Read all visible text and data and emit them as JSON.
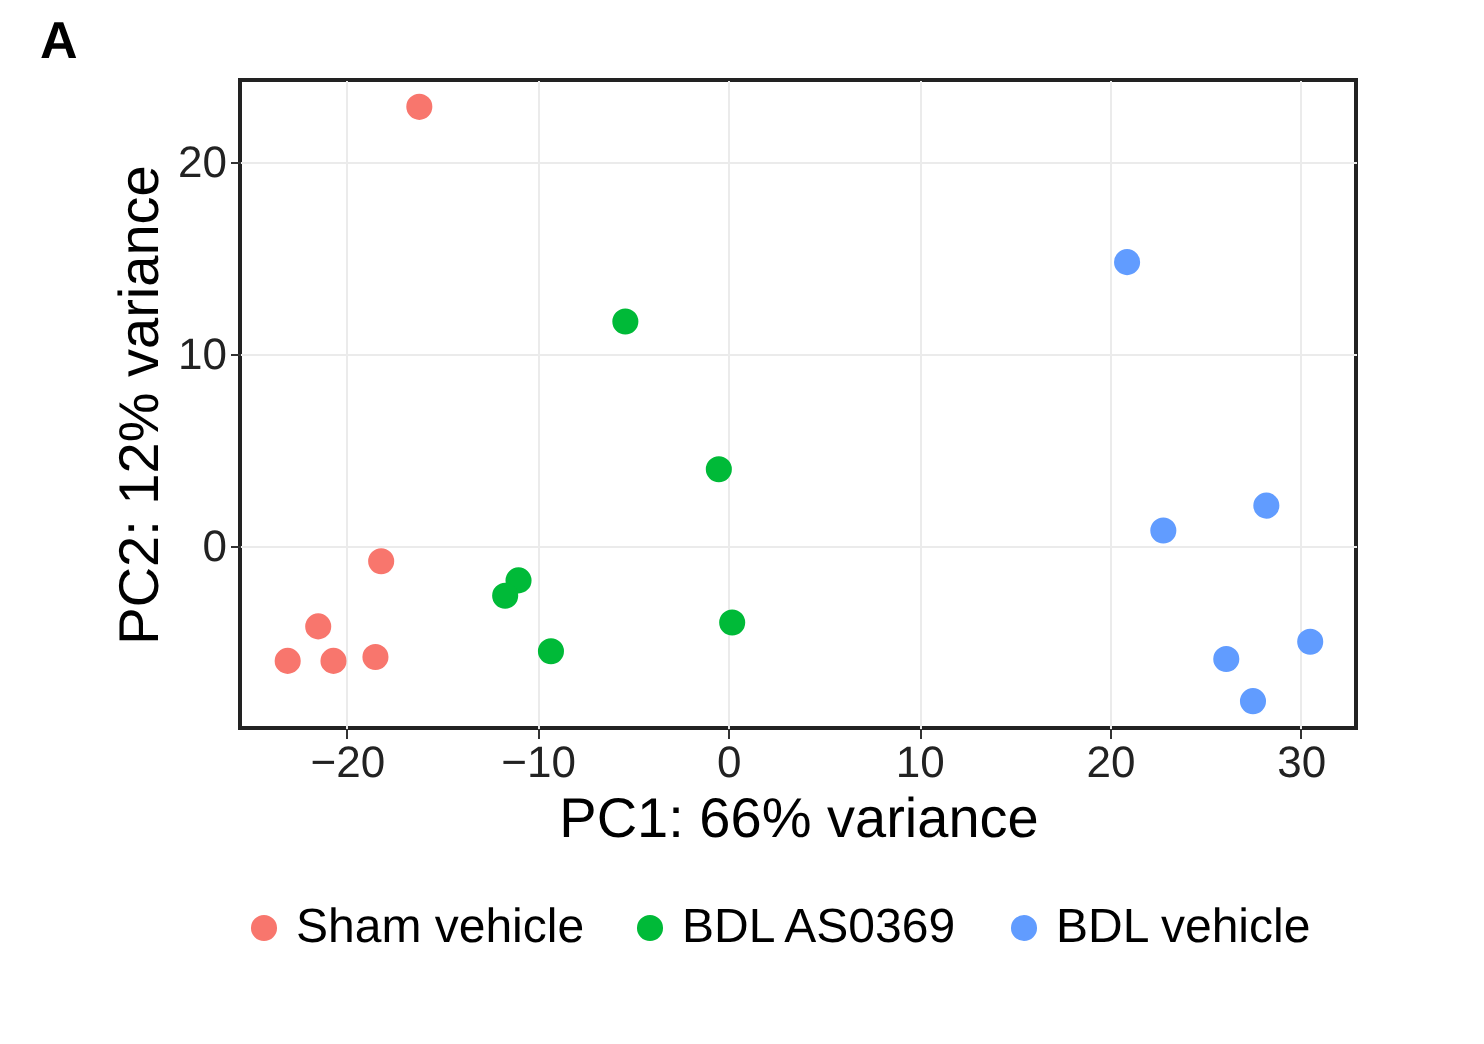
{
  "chart_data": {
    "type": "scatter",
    "title": "A",
    "xlabel": "PC1: 66% variance",
    "ylabel": "PC2: 12% variance",
    "xlim": [
      -25.6,
      32.9
    ],
    "ylim": [
      -9.5,
      24.3
    ],
    "xticks": [
      -20,
      -10,
      0,
      10,
      20,
      30
    ],
    "yticks": [
      0,
      10,
      20
    ],
    "grid": true,
    "legend": "bottom",
    "marker": "circle",
    "series": [
      {
        "name": "Sham vehicle",
        "color": "#f8766d",
        "x": [
          -16.2,
          -18.2,
          -21.5,
          -23.1,
          -20.7,
          -18.5
        ],
        "values": [
          22.9,
          -0.8,
          -4.2,
          -6.0,
          -6.0,
          -5.8
        ]
      },
      {
        "name": "BDL AS0369",
        "color": "#00ba38",
        "x": [
          -5.4,
          -0.5,
          -11.0,
          -11.7,
          -9.3,
          0.2
        ],
        "values": [
          11.7,
          4.0,
          -1.8,
          -2.6,
          -5.5,
          -4.0
        ]
      },
      {
        "name": "BDL vehicle",
        "color": "#619cff",
        "x": [
          20.9,
          22.8,
          28.2,
          30.5,
          26.1,
          27.5
        ],
        "values": [
          14.8,
          0.8,
          2.1,
          -5.0,
          -5.9,
          -8.1
        ]
      }
    ]
  }
}
